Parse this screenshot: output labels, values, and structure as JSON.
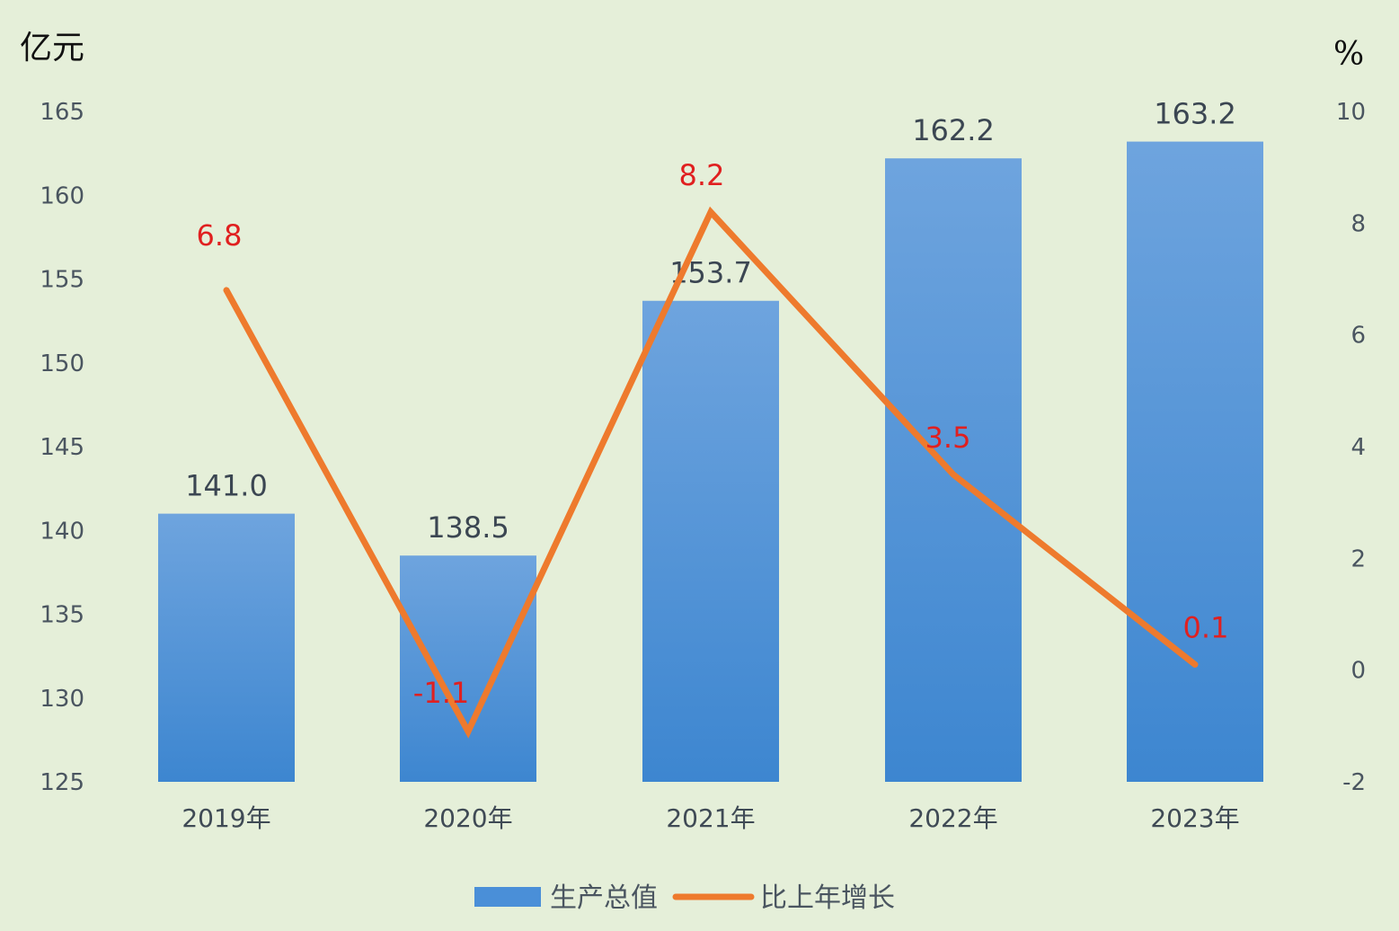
{
  "chart_data": {
    "type": "bar",
    "categories": [
      "2019年",
      "2020年",
      "2021年",
      "2022年",
      "2023年"
    ],
    "series": [
      {
        "name": "生产总值",
        "type": "bar",
        "axis": "left",
        "values": [
          141.0,
          138.5,
          153.7,
          162.2,
          163.2
        ],
        "labels": [
          "141.0",
          "138.5",
          "153.7",
          "162.2",
          "163.2"
        ],
        "color": "#4a8fd8"
      },
      {
        "name": "比上年增长",
        "type": "line",
        "axis": "right",
        "values": [
          6.8,
          -1.1,
          8.2,
          3.5,
          0.1
        ],
        "labels": [
          "6.8",
          "-1.1",
          "8.2",
          "3.5",
          "0.1"
        ],
        "color": "#ee7a2d",
        "label_color": "#e02020"
      }
    ],
    "y_left": {
      "unit": "亿元",
      "ylim": [
        125,
        165
      ],
      "ticks": [
        "125",
        "130",
        "135",
        "140",
        "145",
        "150",
        "155",
        "160",
        "165"
      ]
    },
    "y_right": {
      "unit": "%",
      "ylim": [
        -2,
        10
      ],
      "ticks": [
        "-2",
        "0",
        "2",
        "4",
        "6",
        "8",
        "10"
      ]
    },
    "legend": {
      "position": "bottom-center",
      "items": [
        "生产总值",
        "比上年增长"
      ]
    },
    "grid": false
  }
}
